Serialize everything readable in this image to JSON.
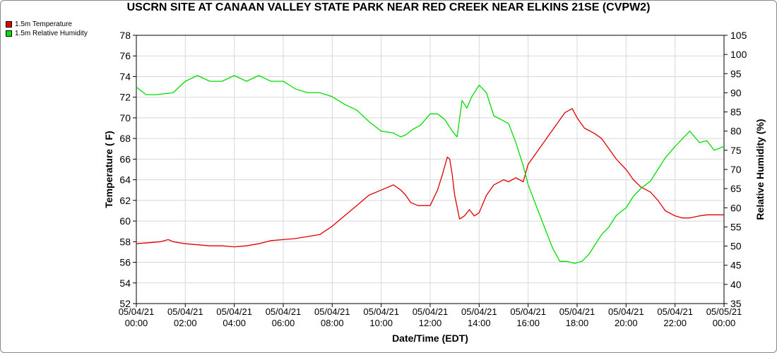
{
  "chart_data": {
    "type": "line",
    "title": "USCRN SITE AT CANAAN VALLEY STATE PARK NEAR RED CREEK NEAR ELKINS 21SE (CVPW2)",
    "xlabel": "Date/Time (EDT)",
    "ylabel_left": "Temperature ( F)",
    "ylabel_right": "Relative Humidity (%)",
    "x_ticks": [
      [
        "05/04/21",
        "00:00"
      ],
      [
        "05/04/21",
        "02:00"
      ],
      [
        "05/04/21",
        "04:00"
      ],
      [
        "05/04/21",
        "06:00"
      ],
      [
        "05/04/21",
        "08:00"
      ],
      [
        "05/04/21",
        "10:00"
      ],
      [
        "05/04/21",
        "12:00"
      ],
      [
        "05/04/21",
        "14:00"
      ],
      [
        "05/04/21",
        "16:00"
      ],
      [
        "05/04/21",
        "18:00"
      ],
      [
        "05/04/21",
        "20:00"
      ],
      [
        "05/04/21",
        "22:00"
      ],
      [
        "05/05/21",
        "00:00"
      ]
    ],
    "xlim_hours": [
      0,
      24
    ],
    "y_left_ticks": [
      "52",
      "54",
      "56",
      "58",
      "60",
      "62",
      "64",
      "66",
      "68",
      "70",
      "72",
      "74",
      "76",
      "78"
    ],
    "ylim_left": [
      52,
      78
    ],
    "y_right_ticks": [
      "35",
      "40",
      "45",
      "50",
      "55",
      "60",
      "65",
      "70",
      "75",
      "80",
      "85",
      "90",
      "95",
      "100",
      "105"
    ],
    "ylim_right": [
      35,
      105
    ],
    "grid": true,
    "legend_position": "top-left",
    "series": [
      {
        "name": "1.5m Temperature",
        "axis": "left",
        "color": "#e00000",
        "x_hours": [
          0,
          0.5,
          1,
          1.3,
          1.5,
          2,
          2.5,
          3,
          3.5,
          4,
          4.5,
          5,
          5.5,
          6,
          6.5,
          7,
          7.5,
          8,
          8.5,
          9,
          9.5,
          10,
          10.5,
          10.8,
          11,
          11.2,
          11.5,
          12,
          12.3,
          12.5,
          12.7,
          12.8,
          12.9,
          13,
          13.2,
          13.4,
          13.6,
          13.8,
          14,
          14.3,
          14.6,
          15,
          15.2,
          15.5,
          15.8,
          16,
          16.3,
          16.6,
          16.9,
          17.2,
          17.5,
          17.8,
          18,
          18.3,
          18.7,
          19,
          19.3,
          19.6,
          20,
          20.3,
          20.6,
          21,
          21.3,
          21.6,
          22,
          22.3,
          22.6,
          23,
          23.3,
          23.6,
          24
        ],
        "values": [
          57.8,
          57.9,
          58.0,
          58.2,
          58.0,
          57.8,
          57.7,
          57.6,
          57.6,
          57.5,
          57.6,
          57.8,
          58.1,
          58.2,
          58.3,
          58.5,
          58.7,
          59.5,
          60.5,
          61.5,
          62.5,
          63.0,
          63.5,
          63.0,
          62.5,
          61.8,
          61.5,
          61.5,
          63.0,
          64.5,
          66.2,
          66.0,
          64.5,
          62.5,
          60.2,
          60.5,
          61.1,
          60.5,
          60.8,
          62.5,
          63.5,
          64.0,
          63.8,
          64.2,
          63.8,
          65.5,
          66.5,
          67.5,
          68.5,
          69.5,
          70.5,
          70.9,
          70.0,
          69.0,
          68.5,
          68.0,
          67.0,
          66.0,
          65.0,
          64.0,
          63.3,
          62.8,
          62.0,
          61.0,
          60.5,
          60.3,
          60.3,
          60.5,
          60.6,
          60.6,
          60.6
        ]
      },
      {
        "name": "1.5m Relative Humidity",
        "axis": "right",
        "color": "#00dd00",
        "x_hours": [
          0,
          0.4,
          0.8,
          1.5,
          2,
          2.5,
          3,
          3.5,
          4,
          4.5,
          5,
          5.5,
          6,
          6.5,
          7,
          7.5,
          8,
          8.5,
          9,
          9.5,
          10,
          10.5,
          10.8,
          11,
          11.3,
          11.6,
          12,
          12.3,
          12.6,
          12.9,
          13.1,
          13.3,
          13.5,
          13.7,
          14,
          14.3,
          14.6,
          14.9,
          15.2,
          15.5,
          15.8,
          16,
          16.3,
          16.6,
          17,
          17.3,
          17.6,
          17.9,
          18.2,
          18.5,
          18.8,
          19,
          19.3,
          19.6,
          20,
          20.3,
          20.6,
          21,
          21.3,
          21.6,
          22,
          22.3,
          22.6,
          23,
          23.3,
          23.6,
          24
        ],
        "values": [
          91.5,
          89.5,
          89.5,
          90,
          93,
          94.5,
          93,
          93,
          94.5,
          93,
          94.5,
          93,
          93,
          91,
          90,
          90,
          89,
          87,
          85.5,
          82.5,
          80,
          79.5,
          78.5,
          79,
          80.5,
          81.5,
          84.5,
          84.5,
          83,
          80,
          78.5,
          88,
          86,
          89,
          92,
          90,
          84,
          83,
          82,
          77,
          71,
          66,
          61,
          56,
          49.5,
          46,
          46,
          45.5,
          46,
          48,
          51,
          53,
          55,
          58,
          60,
          63,
          65,
          67,
          70,
          73,
          76,
          78,
          80,
          77,
          77.5,
          75,
          76
        ]
      }
    ]
  }
}
